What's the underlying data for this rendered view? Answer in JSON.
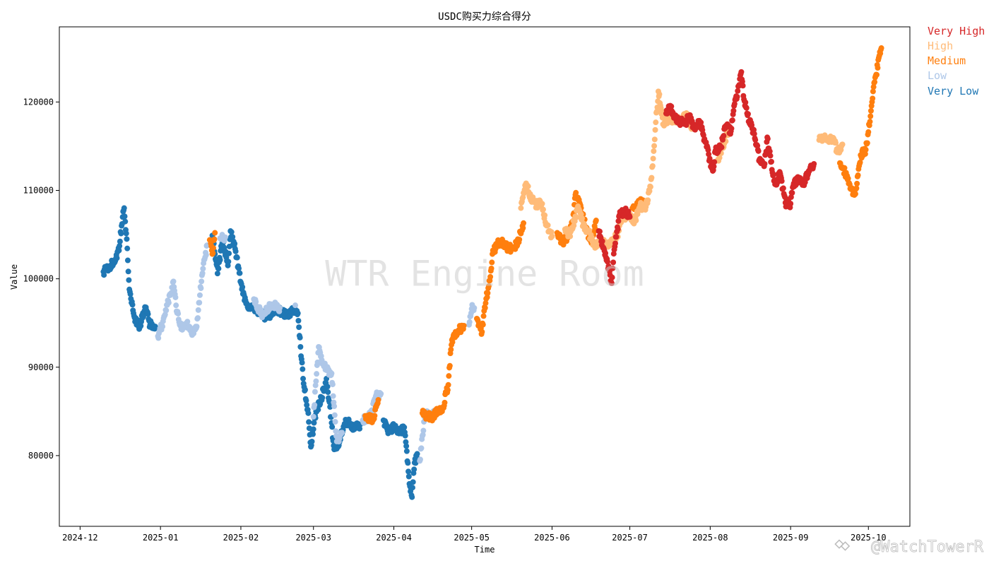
{
  "chart_data": {
    "type": "scatter",
    "title": "USDC购买力综合得分",
    "xlabel": "Time",
    "ylabel": "Value",
    "xlim": [
      "2024-11-23",
      "2025-10-17"
    ],
    "ylim": [
      72000,
      128500
    ],
    "x_ticks": [
      "2024-12-01",
      "2025-01-01",
      "2025-02-01",
      "2025-03-01",
      "2025-04-01",
      "2025-05-01",
      "2025-06-01",
      "2025-07-01",
      "2025-08-01",
      "2025-09-01",
      "2025-10-01"
    ],
    "x_tick_labels": [
      "2024-12",
      "2025-01",
      "2025-02",
      "2025-03",
      "2025-04",
      "2025-05",
      "2025-06",
      "2025-07",
      "2025-08",
      "2025-09",
      "2025-10"
    ],
    "y_ticks": [
      80000,
      90000,
      100000,
      110000,
      120000
    ],
    "y_tick_labels": [
      "80000",
      "90000",
      "100000",
      "110000",
      "120000"
    ],
    "grid": false,
    "legend_position": "outside-top-right",
    "legend": [
      {
        "name": "Very High",
        "color": "#d62728"
      },
      {
        "name": "High",
        "color": "#ffbb78"
      },
      {
        "name": "Medium",
        "color": "#ff7f0e"
      },
      {
        "name": "Low",
        "color": "#aec7e8"
      },
      {
        "name": "Very Low",
        "color": "#1f77b4"
      }
    ],
    "series": [
      {
        "name": "Very Low",
        "color": "#1f77b4",
        "points": [
          [
            "2024-12-10",
            100800
          ],
          [
            "2024-12-12",
            101300
          ],
          [
            "2024-12-14",
            101900
          ],
          [
            "2024-12-16",
            103200
          ],
          [
            "2024-12-17",
            106000
          ],
          [
            "2024-12-18",
            108000
          ],
          [
            "2024-12-19",
            104500
          ],
          [
            "2024-12-20",
            98800
          ],
          [
            "2024-12-22",
            95600
          ],
          [
            "2024-12-24",
            94500
          ],
          [
            "2024-12-26",
            96800
          ],
          [
            "2024-12-28",
            94800
          ],
          [
            "2024-12-30",
            94600
          ],
          [
            "2025-01-21",
            104900
          ],
          [
            "2025-01-23",
            100600
          ],
          [
            "2025-01-25",
            104400
          ],
          [
            "2025-01-27",
            101500
          ],
          [
            "2025-01-28",
            105400
          ],
          [
            "2025-01-30",
            103100
          ],
          [
            "2025-02-01",
            99600
          ],
          [
            "2025-02-03",
            97200
          ],
          [
            "2025-02-05",
            96700
          ],
          [
            "2025-02-08",
            96200
          ],
          [
            "2025-02-11",
            95600
          ],
          [
            "2025-02-14",
            96500
          ],
          [
            "2025-02-17",
            96200
          ],
          [
            "2025-02-19",
            95900
          ],
          [
            "2025-02-21",
            96300
          ],
          [
            "2025-02-23",
            96100
          ],
          [
            "2025-02-25",
            88700
          ],
          [
            "2025-02-27",
            84800
          ],
          [
            "2025-02-28",
            81000
          ],
          [
            "2025-03-02",
            85000
          ],
          [
            "2025-03-04",
            86500
          ],
          [
            "2025-03-06",
            88700
          ],
          [
            "2025-03-07",
            86200
          ],
          [
            "2025-03-09",
            80700
          ],
          [
            "2025-03-11",
            81500
          ],
          [
            "2025-03-13",
            83600
          ],
          [
            "2025-03-15",
            83700
          ],
          [
            "2025-03-17",
            83100
          ],
          [
            "2025-03-19",
            83500
          ],
          [
            "2025-03-28",
            84000
          ],
          [
            "2025-03-30",
            82600
          ],
          [
            "2025-04-01",
            83300
          ],
          [
            "2025-04-03",
            82500
          ],
          [
            "2025-04-05",
            83200
          ],
          [
            "2025-04-06",
            80500
          ],
          [
            "2025-04-07",
            76800
          ],
          [
            "2025-04-08",
            75300
          ],
          [
            "2025-04-09",
            79200
          ],
          [
            "2025-04-10",
            80200
          ]
        ]
      },
      {
        "name": "Low",
        "color": "#aec7e8",
        "points": [
          [
            "2024-12-31",
            93500
          ],
          [
            "2025-01-01",
            94200
          ],
          [
            "2025-01-02",
            95200
          ],
          [
            "2025-01-04",
            97500
          ],
          [
            "2025-01-06",
            99700
          ],
          [
            "2025-01-07",
            97000
          ],
          [
            "2025-01-09",
            94300
          ],
          [
            "2025-01-11",
            95000
          ],
          [
            "2025-01-13",
            93800
          ],
          [
            "2025-01-15",
            94600
          ],
          [
            "2025-01-17",
            100400
          ],
          [
            "2025-01-19",
            103800
          ],
          [
            "2025-01-24",
            104600
          ],
          [
            "2025-01-26",
            104700
          ],
          [
            "2025-02-06",
            97700
          ],
          [
            "2025-02-09",
            96000
          ],
          [
            "2025-02-13",
            97000
          ],
          [
            "2025-02-16",
            96700
          ],
          [
            "2025-02-22",
            97000
          ],
          [
            "2025-03-01",
            84400
          ],
          [
            "2025-03-03",
            92300
          ],
          [
            "2025-03-05",
            90100
          ],
          [
            "2025-03-08",
            89300
          ],
          [
            "2025-03-10",
            81600
          ],
          [
            "2025-03-12",
            82600
          ],
          [
            "2025-03-20",
            84000
          ],
          [
            "2025-03-23",
            84500
          ],
          [
            "2025-03-25",
            86700
          ],
          [
            "2025-03-27",
            87000
          ],
          [
            "2025-04-11",
            79400
          ],
          [
            "2025-04-13",
            84800
          ],
          [
            "2025-04-15",
            84500
          ],
          [
            "2025-04-17",
            84700
          ],
          [
            "2025-04-30",
            94800
          ],
          [
            "2025-05-01",
            96600
          ],
          [
            "2025-05-02",
            96700
          ]
        ]
      },
      {
        "name": "Medium",
        "color": "#ff7f0e",
        "points": [
          [
            "2025-01-20",
            104400
          ],
          [
            "2025-01-21",
            102800
          ],
          [
            "2025-01-22",
            105200
          ],
          [
            "2025-03-21",
            84500
          ],
          [
            "2025-03-24",
            84000
          ],
          [
            "2025-03-26",
            86300
          ],
          [
            "2025-04-12",
            84800
          ],
          [
            "2025-04-14",
            84500
          ],
          [
            "2025-04-16",
            84400
          ],
          [
            "2025-04-18",
            85100
          ],
          [
            "2025-04-20",
            85500
          ],
          [
            "2025-04-22",
            88000
          ],
          [
            "2025-04-23",
            92000
          ],
          [
            "2025-04-24",
            93600
          ],
          [
            "2025-04-26",
            94200
          ],
          [
            "2025-04-28",
            94700
          ],
          [
            "2025-05-03",
            95500
          ],
          [
            "2025-05-05",
            94000
          ],
          [
            "2025-05-06",
            96800
          ],
          [
            "2025-05-08",
            99800
          ],
          [
            "2025-05-09",
            102800
          ],
          [
            "2025-05-11",
            104100
          ],
          [
            "2025-05-13",
            104000
          ],
          [
            "2025-05-15",
            103500
          ],
          [
            "2025-05-17",
            103400
          ],
          [
            "2025-05-19",
            104300
          ],
          [
            "2025-05-21",
            106300
          ],
          [
            "2025-06-03",
            105200
          ],
          [
            "2025-06-05",
            104200
          ],
          [
            "2025-06-07",
            104600
          ],
          [
            "2025-06-09",
            106500
          ],
          [
            "2025-06-10",
            109500
          ],
          [
            "2025-06-12",
            108300
          ],
          [
            "2025-06-14",
            105800
          ],
          [
            "2025-06-16",
            104200
          ],
          [
            "2025-06-18",
            106600
          ],
          [
            "2025-07-02",
            108000
          ],
          [
            "2025-07-04",
            108400
          ],
          [
            "2025-07-06",
            108900
          ],
          [
            "2025-09-20",
            113100
          ],
          [
            "2025-09-22",
            112000
          ],
          [
            "2025-09-24",
            110200
          ],
          [
            "2025-09-26",
            109600
          ],
          [
            "2025-09-28",
            114000
          ],
          [
            "2025-09-30",
            114600
          ],
          [
            "2025-10-01",
            116600
          ],
          [
            "2025-10-02",
            119000
          ],
          [
            "2025-10-03",
            121700
          ],
          [
            "2025-10-04",
            123100
          ],
          [
            "2025-10-05",
            125000
          ],
          [
            "2025-10-06",
            126100
          ]
        ]
      },
      {
        "name": "High",
        "color": "#ffbb78",
        "points": [
          [
            "2025-05-20",
            108000
          ],
          [
            "2025-05-22",
            110800
          ],
          [
            "2025-05-24",
            109100
          ],
          [
            "2025-05-26",
            108400
          ],
          [
            "2025-05-28",
            108500
          ],
          [
            "2025-05-30",
            106000
          ],
          [
            "2025-06-01",
            104800
          ],
          [
            "2025-06-06",
            105600
          ],
          [
            "2025-06-08",
            104800
          ],
          [
            "2025-06-11",
            108200
          ],
          [
            "2025-06-13",
            106000
          ],
          [
            "2025-06-15",
            105300
          ],
          [
            "2025-06-17",
            103800
          ],
          [
            "2025-06-20",
            104200
          ],
          [
            "2025-06-22",
            103800
          ],
          [
            "2025-06-26",
            104800
          ],
          [
            "2025-06-28",
            106800
          ],
          [
            "2025-06-30",
            107300
          ],
          [
            "2025-07-03",
            106600
          ],
          [
            "2025-07-05",
            108300
          ],
          [
            "2025-07-07",
            107800
          ],
          [
            "2025-07-09",
            110400
          ],
          [
            "2025-07-10",
            113600
          ],
          [
            "2025-07-11",
            117700
          ],
          [
            "2025-07-12",
            121200
          ],
          [
            "2025-07-14",
            117500
          ],
          [
            "2025-07-16",
            118200
          ],
          [
            "2025-07-19",
            117800
          ],
          [
            "2025-07-21",
            118100
          ],
          [
            "2025-07-23",
            118400
          ],
          [
            "2025-07-25",
            117100
          ],
          [
            "2025-08-04",
            113500
          ],
          [
            "2025-08-08",
            116800
          ],
          [
            "2025-09-12",
            115700
          ],
          [
            "2025-09-14",
            116000
          ],
          [
            "2025-09-16",
            115800
          ],
          [
            "2025-09-18",
            115400
          ],
          [
            "2025-09-19",
            114300
          ],
          [
            "2025-09-21",
            115200
          ]
        ]
      },
      {
        "name": "Very High",
        "color": "#d62728",
        "points": [
          [
            "2025-06-19",
            105400
          ],
          [
            "2025-06-21",
            103400
          ],
          [
            "2025-06-22",
            102100
          ],
          [
            "2025-06-23",
            101000
          ],
          [
            "2025-06-24",
            99500
          ],
          [
            "2025-06-25",
            103300
          ],
          [
            "2025-06-27",
            107200
          ],
          [
            "2025-06-29",
            107700
          ],
          [
            "2025-07-01",
            107000
          ],
          [
            "2025-07-15",
            118700
          ],
          [
            "2025-07-17",
            119500
          ],
          [
            "2025-07-18",
            118200
          ],
          [
            "2025-07-20",
            117900
          ],
          [
            "2025-07-22",
            117500
          ],
          [
            "2025-07-24",
            118300
          ],
          [
            "2025-07-26",
            116900
          ],
          [
            "2025-07-28",
            117700
          ],
          [
            "2025-07-30",
            115500
          ],
          [
            "2025-08-01",
            113300
          ],
          [
            "2025-08-02",
            112200
          ],
          [
            "2025-08-03",
            114500
          ],
          [
            "2025-08-05",
            114800
          ],
          [
            "2025-08-07",
            117300
          ],
          [
            "2025-08-09",
            116700
          ],
          [
            "2025-08-10",
            119000
          ],
          [
            "2025-08-12",
            121800
          ],
          [
            "2025-08-13",
            123400
          ],
          [
            "2025-08-14",
            120300
          ],
          [
            "2025-08-16",
            117800
          ],
          [
            "2025-08-18",
            116400
          ],
          [
            "2025-08-20",
            113500
          ],
          [
            "2025-08-22",
            113000
          ],
          [
            "2025-08-23",
            116000
          ],
          [
            "2025-08-25",
            112000
          ],
          [
            "2025-08-26",
            110700
          ],
          [
            "2025-08-28",
            111900
          ],
          [
            "2025-08-30",
            108600
          ],
          [
            "2025-09-01",
            108500
          ],
          [
            "2025-09-02",
            110500
          ],
          [
            "2025-09-04",
            111300
          ],
          [
            "2025-09-06",
            110800
          ],
          [
            "2025-09-08",
            112200
          ],
          [
            "2025-09-10",
            113000
          ]
        ]
      }
    ],
    "annotations": [
      "WTR Engine Room",
      "@WatchTowerR"
    ]
  }
}
